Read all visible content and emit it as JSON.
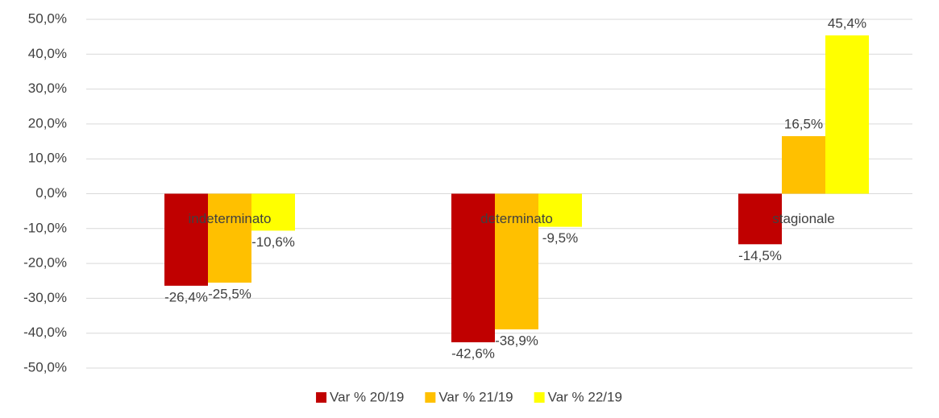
{
  "chart_data": {
    "type": "bar",
    "categories": [
      "indeterminato",
      "determinato",
      "stagionale"
    ],
    "series": [
      {
        "name": "Var % 20/19",
        "color": "#c00000",
        "values": [
          -26.4,
          -42.6,
          -14.5
        ],
        "value_labels": [
          "-26,4%",
          "-42,6%",
          "-14,5%"
        ]
      },
      {
        "name": "Var % 21/19",
        "color": "#ffc000",
        "values": [
          -25.5,
          -38.9,
          16.5
        ],
        "value_labels": [
          "-25,5%",
          "-38,9%",
          "16,5%"
        ]
      },
      {
        "name": "Var % 22/19",
        "color": "#ffff00",
        "values": [
          -10.6,
          -9.5,
          45.4
        ],
        "value_labels": [
          "-10,6%",
          "-9,5%",
          "45,4%"
        ]
      }
    ],
    "ylim": [
      -50,
      50
    ],
    "yticks": [
      {
        "value": -50,
        "label": "-50,0%"
      },
      {
        "value": -40,
        "label": "-40,0%"
      },
      {
        "value": -30,
        "label": "-30,0%"
      },
      {
        "value": -20,
        "label": "-20,0%"
      },
      {
        "value": -10,
        "label": "-10,0%"
      },
      {
        "value": 0,
        "label": "0,0%"
      },
      {
        "value": 10,
        "label": "10,0%"
      },
      {
        "value": 20,
        "label": "20,0%"
      },
      {
        "value": 30,
        "label": "30,0%"
      },
      {
        "value": 40,
        "label": "40,0%"
      },
      {
        "value": 50,
        "label": "50,0%"
      }
    ],
    "grid": true,
    "legend": "bottom"
  }
}
